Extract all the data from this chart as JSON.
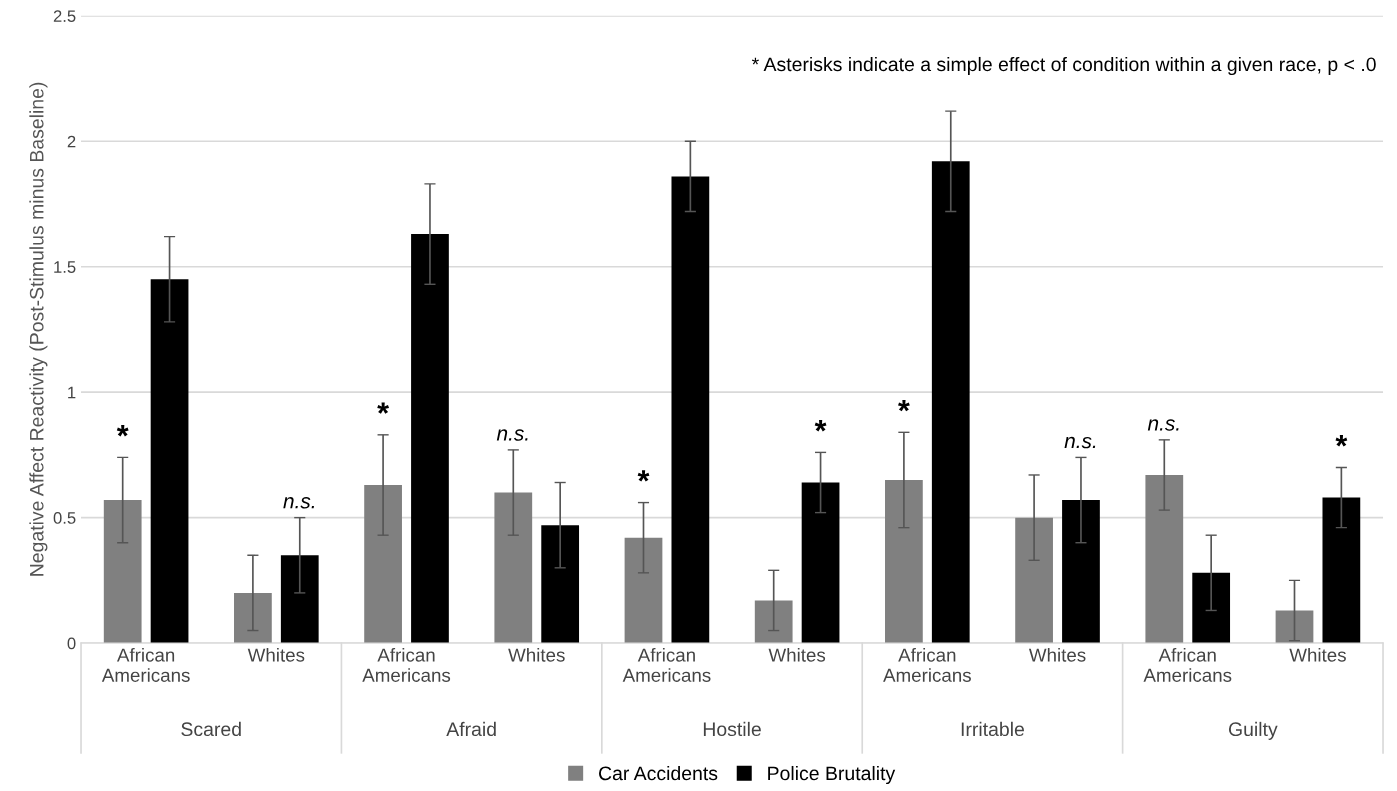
{
  "chart_data": {
    "type": "bar",
    "ylabel": "Negative Affect Reactivity (Post-Stimulus minus Baseline)",
    "categories": [
      "African\nAmericans",
      "Whites",
      "African\nAmericans",
      "Whites",
      "African\nAmericans",
      "Whites",
      "African\nAmericans",
      "Whites",
      "African\nAmericans",
      "Whites"
    ],
    "series": [
      {
        "name": "Car Accidents",
        "color": "#808080",
        "values": [
          0.57,
          0.2,
          0.63,
          0.6,
          0.42,
          0.17,
          0.65,
          0.5,
          0.67,
          0.13
        ],
        "errors": [
          0.17,
          0.15,
          0.2,
          0.17,
          0.14,
          0.12,
          0.19,
          0.17,
          0.14,
          0.12
        ]
      },
      {
        "name": "Police Brutality",
        "color": "#000000",
        "values": [
          1.45,
          0.35,
          1.63,
          0.47,
          1.86,
          0.64,
          1.92,
          0.57,
          0.28,
          0.58
        ],
        "errors": [
          0.17,
          0.15,
          0.2,
          0.17,
          0.14,
          0.12,
          0.2,
          0.17,
          0.15,
          0.12
        ]
      }
    ],
    "ylim": [
      0,
      2.5
    ],
    "yticks": [
      0,
      0.5,
      1,
      1.5,
      2,
      2.5
    ],
    "grid": "y",
    "legend": "bottom",
    "annotations": [
      "* Asterisks indicate a simple effect of condition within a given race, p < .0",
      "Scared",
      "Afraid",
      "Hostile",
      "Irritable",
      "Guilty",
      "*",
      "n.s.",
      "*",
      "n.s.",
      "*",
      "*",
      "*",
      "n.s.",
      "n.s.",
      "*"
    ]
  }
}
